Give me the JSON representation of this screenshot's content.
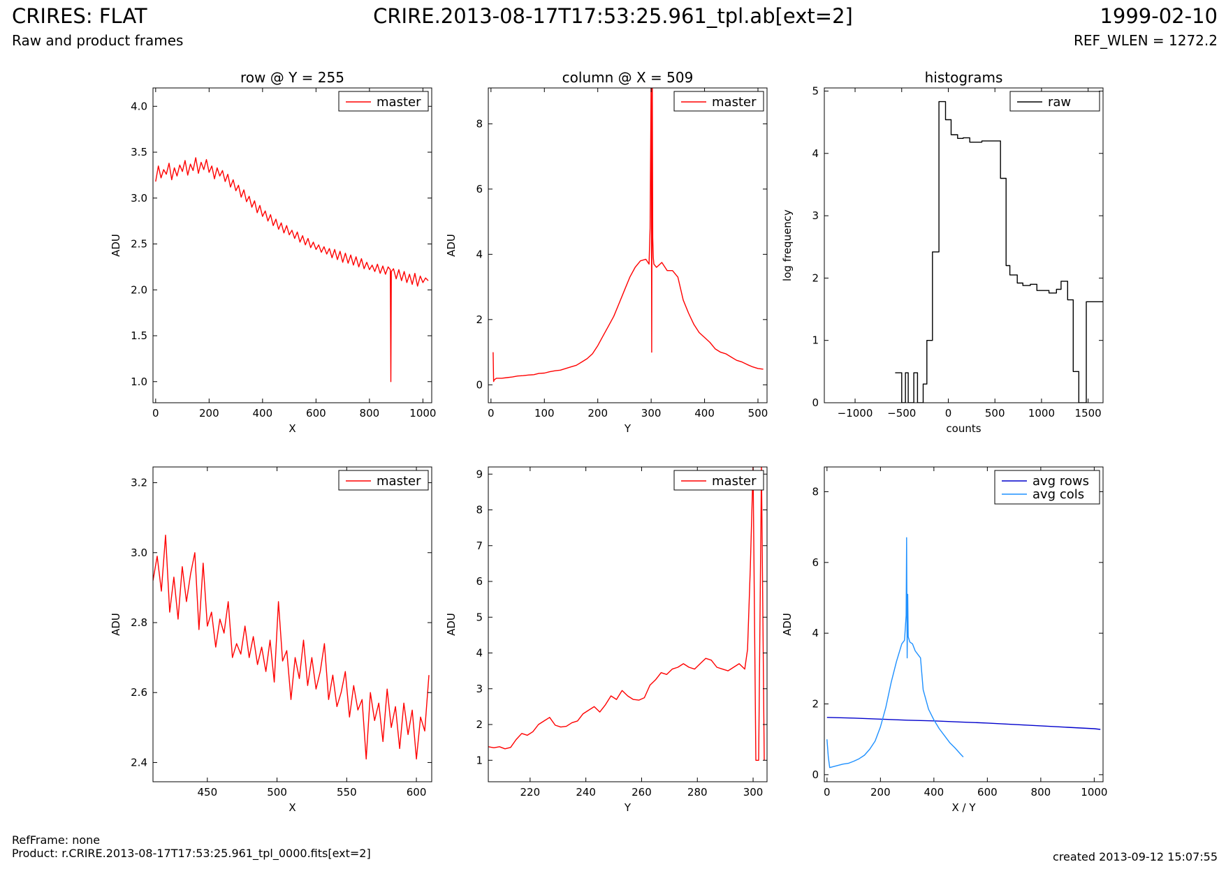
{
  "header": {
    "title": "CRIRES: FLAT",
    "subtitle": "Raw and product frames",
    "file": "CRIRE.2013-08-17T17:53:25.961_tpl.ab[ext=2]",
    "date": "1999-02-10",
    "ref_wlen": "REF_WLEN = 1272.2"
  },
  "footer": {
    "refframe": "RefFrame: none",
    "product": "Product: r.CRIRE.2013-08-17T17:53:25.961_tpl_0000.fits[ext=2]",
    "created": "created 2013-09-12 15:07:55"
  },
  "colors": {
    "master": "#ff0000",
    "raw": "#000000",
    "avg_rows": "#0000cc",
    "avg_cols": "#1e90ff"
  },
  "chart_data": [
    {
      "type": "line",
      "title": "row @ Y = 255",
      "xlabel": "X",
      "ylabel": "ADU",
      "xlim": [
        -10,
        1033
      ],
      "ylim": [
        0.77,
        4.2
      ],
      "xticks": [
        0,
        200,
        400,
        600,
        800,
        1000
      ],
      "yticks": [
        1.0,
        1.5,
        2.0,
        2.5,
        3.0,
        3.5,
        4.0
      ],
      "legend": "top-right",
      "series": [
        {
          "name": "master",
          "color": "#ff0000",
          "x": [
            0,
            10,
            20,
            30,
            40,
            50,
            60,
            70,
            80,
            90,
            100,
            110,
            120,
            130,
            140,
            150,
            160,
            170,
            180,
            190,
            200,
            210,
            220,
            230,
            240,
            250,
            260,
            270,
            280,
            290,
            300,
            310,
            320,
            330,
            340,
            350,
            360,
            370,
            380,
            390,
            400,
            410,
            420,
            430,
            440,
            450,
            460,
            470,
            480,
            490,
            500,
            510,
            520,
            530,
            540,
            550,
            560,
            570,
            580,
            590,
            600,
            610,
            620,
            630,
            640,
            650,
            660,
            670,
            680,
            690,
            700,
            710,
            720,
            730,
            740,
            750,
            760,
            770,
            780,
            790,
            800,
            810,
            820,
            830,
            840,
            850,
            860,
            870,
            878,
            880,
            882,
            890,
            900,
            910,
            920,
            930,
            940,
            950,
            960,
            970,
            980,
            990,
            1000,
            1010,
            1020
          ],
          "y": [
            3.18,
            3.35,
            3.22,
            3.31,
            3.26,
            3.38,
            3.2,
            3.33,
            3.24,
            3.36,
            3.29,
            3.41,
            3.25,
            3.37,
            3.3,
            3.44,
            3.27,
            3.39,
            3.31,
            3.42,
            3.28,
            3.35,
            3.21,
            3.33,
            3.24,
            3.3,
            3.18,
            3.26,
            3.12,
            3.2,
            3.08,
            3.14,
            3.01,
            3.09,
            2.96,
            3.02,
            2.9,
            2.97,
            2.84,
            2.92,
            2.8,
            2.86,
            2.75,
            2.82,
            2.7,
            2.77,
            2.66,
            2.73,
            2.62,
            2.7,
            2.6,
            2.65,
            2.56,
            2.63,
            2.52,
            2.59,
            2.49,
            2.56,
            2.46,
            2.52,
            2.44,
            2.49,
            2.41,
            2.47,
            2.39,
            2.45,
            2.35,
            2.44,
            2.33,
            2.42,
            2.3,
            2.4,
            2.29,
            2.38,
            2.27,
            2.36,
            2.25,
            2.34,
            2.23,
            2.3,
            2.22,
            2.27,
            2.2,
            2.28,
            2.18,
            2.26,
            2.17,
            2.25,
            2.22,
            1.0,
            2.2,
            2.23,
            2.12,
            2.22,
            2.1,
            2.2,
            2.08,
            2.17,
            2.06,
            2.18,
            2.04,
            2.15,
            2.08,
            2.13,
            2.1
          ]
        }
      ]
    },
    {
      "type": "line",
      "title": "column @ X = 509",
      "xlabel": "Y",
      "ylabel": "ADU",
      "xlim": [
        -5,
        517
      ],
      "ylim": [
        -0.55,
        9.1
      ],
      "xticks": [
        0,
        100,
        200,
        300,
        400,
        500
      ],
      "yticks": [
        0,
        2,
        4,
        6,
        8
      ],
      "legend": "top-right",
      "series": [
        {
          "name": "master",
          "color": "#ff0000",
          "x": [
            4,
            5,
            6,
            10,
            20,
            30,
            40,
            50,
            60,
            70,
            80,
            90,
            100,
            110,
            120,
            130,
            140,
            150,
            160,
            170,
            180,
            190,
            200,
            210,
            220,
            230,
            240,
            250,
            260,
            270,
            280,
            290,
            296,
            298,
            300,
            301,
            302,
            303,
            304,
            305,
            310,
            320,
            330,
            340,
            350,
            360,
            370,
            380,
            390,
            400,
            410,
            420,
            430,
            440,
            450,
            460,
            470,
            480,
            490,
            500,
            510
          ],
          "y": [
            1.0,
            0.1,
            0.15,
            0.2,
            0.2,
            0.22,
            0.24,
            0.27,
            0.28,
            0.3,
            0.31,
            0.35,
            0.36,
            0.4,
            0.43,
            0.45,
            0.5,
            0.55,
            0.6,
            0.7,
            0.8,
            0.95,
            1.2,
            1.5,
            1.8,
            2.1,
            2.5,
            2.9,
            3.3,
            3.6,
            3.8,
            3.85,
            3.7,
            4.8,
            9.5,
            1.0,
            9.5,
            4.5,
            3.9,
            3.7,
            3.6,
            3.75,
            3.5,
            3.5,
            3.3,
            2.6,
            2.2,
            1.85,
            1.6,
            1.45,
            1.3,
            1.1,
            1.0,
            0.95,
            0.85,
            0.75,
            0.7,
            0.62,
            0.55,
            0.5,
            0.48
          ]
        }
      ]
    },
    {
      "type": "line",
      "title": "histograms",
      "xlabel": "counts",
      "ylabel": "log frequency",
      "xlim": [
        -1330,
        1660
      ],
      "ylim": [
        0,
        5.05
      ],
      "xticks": [
        -1000,
        -500,
        0,
        500,
        1000,
        1500
      ],
      "yticks": [
        0,
        1,
        2,
        3,
        4,
        5
      ],
      "legend": "top-right",
      "series": [
        {
          "name": "raw",
          "color": "#000000",
          "x": [
            -570,
            -500,
            -500,
            -460,
            -460,
            -430,
            -430,
            -370,
            -370,
            -330,
            -330,
            -270,
            -270,
            -230,
            -230,
            -170,
            -170,
            -100,
            -100,
            -30,
            -30,
            30,
            30,
            100,
            100,
            160,
            160,
            230,
            230,
            360,
            360,
            420,
            420,
            560,
            560,
            620,
            620,
            660,
            660,
            740,
            740,
            800,
            800,
            880,
            880,
            950,
            950,
            1080,
            1080,
            1160,
            1160,
            1210,
            1210,
            1280,
            1280,
            1340,
            1340,
            1400,
            1400,
            1480,
            1480,
            1550,
            1550,
            1600,
            1600,
            1660
          ],
          "y": [
            0.48,
            0.48,
            0.0,
            0.0,
            0.48,
            0.48,
            0.0,
            0.0,
            0.48,
            0.48,
            0.0,
            0.0,
            0.3,
            0.3,
            1.0,
            1.0,
            2.42,
            2.42,
            4.83,
            4.83,
            4.54,
            4.54,
            4.3,
            4.3,
            4.24,
            4.24,
            4.25,
            4.25,
            4.18,
            4.18,
            4.2,
            4.2,
            4.2,
            4.2,
            3.6,
            3.6,
            2.2,
            2.2,
            2.05,
            2.05,
            1.92,
            1.92,
            1.88,
            1.88,
            1.9,
            1.9,
            1.8,
            1.8,
            1.76,
            1.76,
            1.82,
            1.82,
            1.95,
            1.95,
            1.65,
            1.65,
            0.5,
            0.5,
            0.0,
            0.0,
            1.62,
            1.62,
            1.62,
            1.62,
            1.62,
            1.62
          ]
        }
      ]
    },
    {
      "type": "line",
      "title": "",
      "xlabel": "X",
      "ylabel": "ADU",
      "xlim": [
        411,
        611
      ],
      "ylim": [
        2.345,
        3.245
      ],
      "xticks": [
        450,
        500,
        550,
        600
      ],
      "yticks": [
        2.4,
        2.6,
        2.8,
        3.0,
        3.2
      ],
      "legend": "top-right",
      "series": [
        {
          "name": "master",
          "color": "#ff0000",
          "x": [
            411,
            414,
            417,
            420,
            423,
            426,
            429,
            432,
            435,
            438,
            441,
            444,
            447,
            450,
            453,
            456,
            459,
            462,
            465,
            468,
            471,
            474,
            477,
            480,
            483,
            486,
            489,
            492,
            495,
            498,
            501,
            504,
            507,
            510,
            513,
            516,
            519,
            522,
            525,
            528,
            531,
            534,
            537,
            540,
            543,
            546,
            549,
            552,
            555,
            558,
            561,
            564,
            567,
            570,
            573,
            576,
            579,
            582,
            585,
            588,
            591,
            594,
            597,
            600,
            603,
            606,
            609
          ],
          "y": [
            2.92,
            2.99,
            2.89,
            3.05,
            2.83,
            2.93,
            2.81,
            2.96,
            2.86,
            2.94,
            3.0,
            2.78,
            2.97,
            2.79,
            2.83,
            2.73,
            2.81,
            2.77,
            2.86,
            2.7,
            2.74,
            2.71,
            2.79,
            2.7,
            2.76,
            2.68,
            2.73,
            2.66,
            2.75,
            2.63,
            2.86,
            2.69,
            2.72,
            2.58,
            2.7,
            2.64,
            2.75,
            2.62,
            2.7,
            2.61,
            2.66,
            2.74,
            2.58,
            2.65,
            2.56,
            2.6,
            2.66,
            2.53,
            2.62,
            2.55,
            2.58,
            2.41,
            2.6,
            2.52,
            2.57,
            2.46,
            2.61,
            2.5,
            2.56,
            2.44,
            2.57,
            2.48,
            2.55,
            2.41,
            2.53,
            2.49,
            2.65
          ]
        }
      ]
    },
    {
      "type": "line",
      "title": "",
      "xlabel": "Y",
      "ylabel": "ADU",
      "xlim": [
        205,
        305
      ],
      "ylim": [
        0.4,
        9.2
      ],
      "xticks": [
        220,
        240,
        260,
        280,
        300
      ],
      "yticks": [
        1,
        2,
        3,
        4,
        5,
        6,
        7,
        8,
        9
      ],
      "legend": "top-right",
      "series": [
        {
          "name": "master",
          "color": "#ff0000",
          "x": [
            205,
            207,
            209,
            211,
            213,
            215,
            217,
            219,
            221,
            223,
            225,
            227,
            229,
            231,
            233,
            235,
            237,
            239,
            241,
            243,
            245,
            247,
            249,
            251,
            253,
            255,
            257,
            259,
            261,
            263,
            265,
            267,
            269,
            271,
            273,
            275,
            277,
            279,
            281,
            283,
            285,
            287,
            289,
            291,
            293,
            295,
            297,
            298,
            299,
            300,
            301,
            302,
            303,
            304
          ],
          "y": [
            1.38,
            1.35,
            1.38,
            1.32,
            1.36,
            1.58,
            1.75,
            1.7,
            1.8,
            2.0,
            2.1,
            2.2,
            1.98,
            1.93,
            1.95,
            2.05,
            2.1,
            2.3,
            2.4,
            2.5,
            2.35,
            2.55,
            2.8,
            2.7,
            2.95,
            2.8,
            2.7,
            2.68,
            2.75,
            3.1,
            3.25,
            3.45,
            3.4,
            3.55,
            3.6,
            3.7,
            3.6,
            3.55,
            3.7,
            3.85,
            3.8,
            3.6,
            3.55,
            3.5,
            3.6,
            3.7,
            3.55,
            4.1,
            6.4,
            9.2,
            1.0,
            1.0,
            9.2,
            1.0
          ]
        }
      ]
    },
    {
      "type": "line",
      "title": "",
      "xlabel": "X / Y",
      "ylabel": "ADU",
      "xlim": [
        -10,
        1033
      ],
      "ylim": [
        -0.2,
        8.7
      ],
      "xticks": [
        0,
        200,
        400,
        600,
        800,
        1000
      ],
      "yticks": [
        0,
        2,
        4,
        6,
        8
      ],
      "legend": "top-right",
      "series": [
        {
          "name": "avg rows",
          "color": "#0000cc",
          "x": [
            0,
            100,
            200,
            300,
            400,
            500,
            600,
            700,
            800,
            900,
            1000,
            1023
          ],
          "y": [
            1.62,
            1.6,
            1.57,
            1.54,
            1.52,
            1.49,
            1.46,
            1.42,
            1.38,
            1.34,
            1.3,
            1.28
          ]
        },
        {
          "name": "avg cols",
          "color": "#1e90ff",
          "x": [
            0,
            5,
            10,
            20,
            40,
            60,
            80,
            100,
            120,
            140,
            160,
            180,
            200,
            220,
            240,
            260,
            280,
            290,
            296,
            298,
            300,
            302,
            304,
            310,
            320,
            330,
            340,
            350,
            360,
            380,
            400,
            420,
            440,
            460,
            480,
            500,
            510
          ],
          "y": [
            1.0,
            0.5,
            0.2,
            0.22,
            0.26,
            0.3,
            0.32,
            0.38,
            0.45,
            0.55,
            0.72,
            0.95,
            1.35,
            1.9,
            2.6,
            3.2,
            3.7,
            3.8,
            4.5,
            6.7,
            3.3,
            5.1,
            3.9,
            3.75,
            3.7,
            3.5,
            3.4,
            3.3,
            2.4,
            1.85,
            1.55,
            1.3,
            1.1,
            0.9,
            0.75,
            0.58,
            0.5
          ]
        }
      ]
    }
  ]
}
